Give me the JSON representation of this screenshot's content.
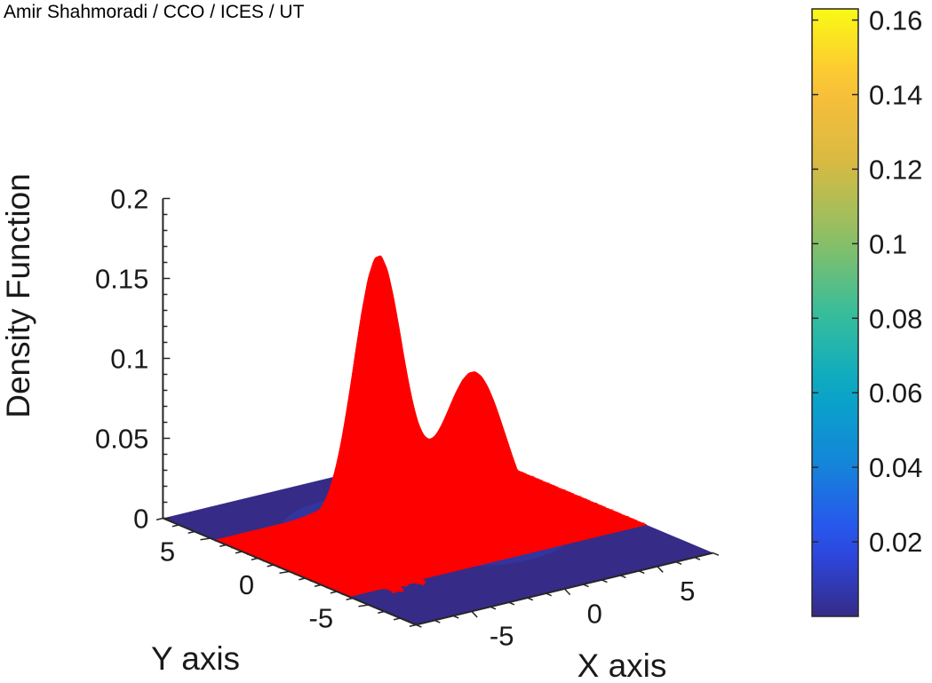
{
  "credit": "Amir Shahmoradi / CCO / ICES / UT",
  "chart_data": {
    "type": "surface",
    "xlabel": "X axis",
    "ylabel": "Y axis",
    "zlabel": "Density Function",
    "xlim": [
      -8,
      8
    ],
    "ylim": [
      -8,
      8
    ],
    "zlim": [
      0,
      0.2
    ],
    "x_ticks": [
      -5,
      0,
      5
    ],
    "y_ticks": [
      -5,
      0,
      5
    ],
    "z_ticks": [
      0,
      0.05,
      0.1,
      0.15,
      0.2
    ],
    "z_tick_labels": [
      "0",
      "0.05",
      "0.1",
      "0.15",
      "0.2"
    ],
    "x_tick_labels": [
      "-5",
      "0",
      "5"
    ],
    "y_tick_labels": [
      "-5",
      "0",
      "5"
    ],
    "colormap": "parula",
    "surface_components": [
      {
        "mean": [
          -1.5,
          2.0
        ],
        "sigma": 1.0,
        "peak": 0.17
      },
      {
        "mean": [
          1.5,
          -0.5
        ],
        "sigma": 1.3,
        "peak": 0.1
      }
    ],
    "overlay": {
      "type": "random-walk",
      "color": "#ff0000"
    },
    "colorbar": {
      "range": [
        0,
        0.163
      ],
      "ticks": [
        0.02,
        0.04,
        0.06,
        0.08,
        0.1,
        0.12,
        0.14,
        0.16
      ],
      "tick_labels": [
        "0.02",
        "0.04",
        "0.06",
        "0.08",
        "0.1",
        "0.12",
        "0.14",
        "0.16"
      ]
    }
  }
}
